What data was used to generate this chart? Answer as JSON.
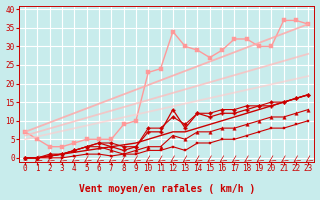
{
  "xlabel": "Vent moyen/en rafales ( km/h )",
  "xlim": [
    -0.5,
    23.5
  ],
  "ylim": [
    -1,
    41
  ],
  "xticks": [
    0,
    1,
    2,
    3,
    4,
    5,
    6,
    7,
    8,
    9,
    10,
    11,
    12,
    13,
    14,
    15,
    16,
    17,
    18,
    19,
    20,
    21,
    22,
    23
  ],
  "yticks": [
    0,
    5,
    10,
    15,
    20,
    25,
    30,
    35,
    40
  ],
  "bg_color": "#c8ecec",
  "grid_color": "#ffffff",
  "series": [
    {
      "x": [
        0,
        1,
        2,
        3,
        4,
        5,
        6,
        7,
        8,
        9,
        10,
        11,
        12,
        13,
        14,
        15,
        16,
        17,
        18,
        19,
        20,
        21,
        22,
        23
      ],
      "y": [
        0,
        0,
        0,
        0,
        0.5,
        1,
        1,
        0.5,
        1,
        1,
        2,
        2,
        3,
        2,
        4,
        4,
        5,
        5,
        6,
        7,
        8,
        8,
        9,
        10
      ],
      "color": "#cc0000",
      "marker": "s",
      "markersize": 2.0,
      "linewidth": 0.8,
      "alpha": 1.0
    },
    {
      "x": [
        0,
        1,
        2,
        3,
        4,
        5,
        6,
        7,
        8,
        9,
        10,
        11,
        12,
        13,
        14,
        15,
        16,
        17,
        18,
        19,
        20,
        21,
        22,
        23
      ],
      "y": [
        0,
        0,
        0.5,
        1,
        2,
        3,
        3,
        2,
        1,
        2,
        3,
        3,
        6,
        5,
        7,
        7,
        8,
        8,
        9,
        10,
        11,
        11,
        12,
        13
      ],
      "color": "#cc0000",
      "marker": "^",
      "markersize": 2.5,
      "linewidth": 0.8,
      "alpha": 1.0
    },
    {
      "x": [
        0,
        1,
        2,
        3,
        4,
        5,
        6,
        7,
        8,
        9,
        10,
        11,
        12,
        13,
        14,
        15,
        16,
        17,
        18,
        19,
        20,
        21,
        22,
        23
      ],
      "y": [
        0,
        0,
        0.5,
        1,
        1.5,
        2,
        2.5,
        3,
        3.5,
        4,
        5,
        6,
        7,
        7,
        8,
        9,
        10,
        11,
        12,
        13,
        14,
        15,
        16,
        17
      ],
      "color": "#cc0000",
      "marker": null,
      "markersize": 0,
      "linewidth": 1.0,
      "alpha": 1.0
    },
    {
      "x": [
        0,
        1,
        2,
        3,
        4,
        5,
        6,
        7,
        8,
        9,
        10,
        11,
        12,
        13,
        14,
        15,
        16,
        17,
        18,
        19,
        20,
        21,
        22,
        23
      ],
      "y": [
        0,
        0,
        0.5,
        1,
        2,
        3,
        4,
        3,
        2,
        3,
        7,
        7,
        13,
        8,
        12,
        11,
        12,
        12,
        13,
        14,
        14,
        15,
        16,
        17
      ],
      "color": "#cc0000",
      "marker": "P",
      "markersize": 2.5,
      "linewidth": 0.9,
      "alpha": 1.0
    },
    {
      "x": [
        0,
        1,
        2,
        3,
        4,
        5,
        6,
        7,
        8,
        9,
        10,
        11,
        12,
        13,
        14,
        15,
        16,
        17,
        18,
        19,
        20,
        21,
        22,
        23
      ],
      "y": [
        0,
        0,
        1,
        1,
        2,
        3,
        4,
        4,
        3,
        3,
        8,
        8,
        11,
        9,
        12,
        12,
        13,
        13,
        14,
        14,
        15,
        15,
        16,
        17
      ],
      "color": "#cc0000",
      "marker": "D",
      "markersize": 2.0,
      "linewidth": 0.8,
      "alpha": 1.0
    },
    {
      "x": [
        0,
        1,
        2,
        3,
        4,
        5,
        6,
        7,
        8,
        9,
        10,
        11,
        12,
        13,
        14,
        15,
        16,
        17,
        18,
        19,
        20,
        21,
        22,
        23
      ],
      "y": [
        7,
        5,
        3,
        3,
        4,
        5,
        5,
        5,
        9,
        10,
        23,
        24,
        34,
        30,
        29,
        27,
        29,
        32,
        32,
        30,
        30,
        37,
        37,
        36
      ],
      "color": "#ff9999",
      "marker": "s",
      "markersize": 2.5,
      "linewidth": 1.0,
      "alpha": 1.0
    },
    {
      "x": [
        0,
        23
      ],
      "y": [
        7,
        36
      ],
      "color": "#ffaaaa",
      "marker": null,
      "markersize": 0,
      "linewidth": 1.3,
      "alpha": 0.85
    },
    {
      "x": [
        0,
        23
      ],
      "y": [
        6,
        28
      ],
      "color": "#ffbbbb",
      "marker": null,
      "markersize": 0,
      "linewidth": 1.3,
      "alpha": 0.75
    },
    {
      "x": [
        0,
        23
      ],
      "y": [
        5,
        22
      ],
      "color": "#ffcccc",
      "marker": null,
      "markersize": 0,
      "linewidth": 1.3,
      "alpha": 0.65
    }
  ],
  "arrow_color": "#cc0000",
  "xlabel_color": "#cc0000",
  "xlabel_fontsize": 7,
  "tick_color": "#cc0000",
  "tick_fontsize": 5.5
}
